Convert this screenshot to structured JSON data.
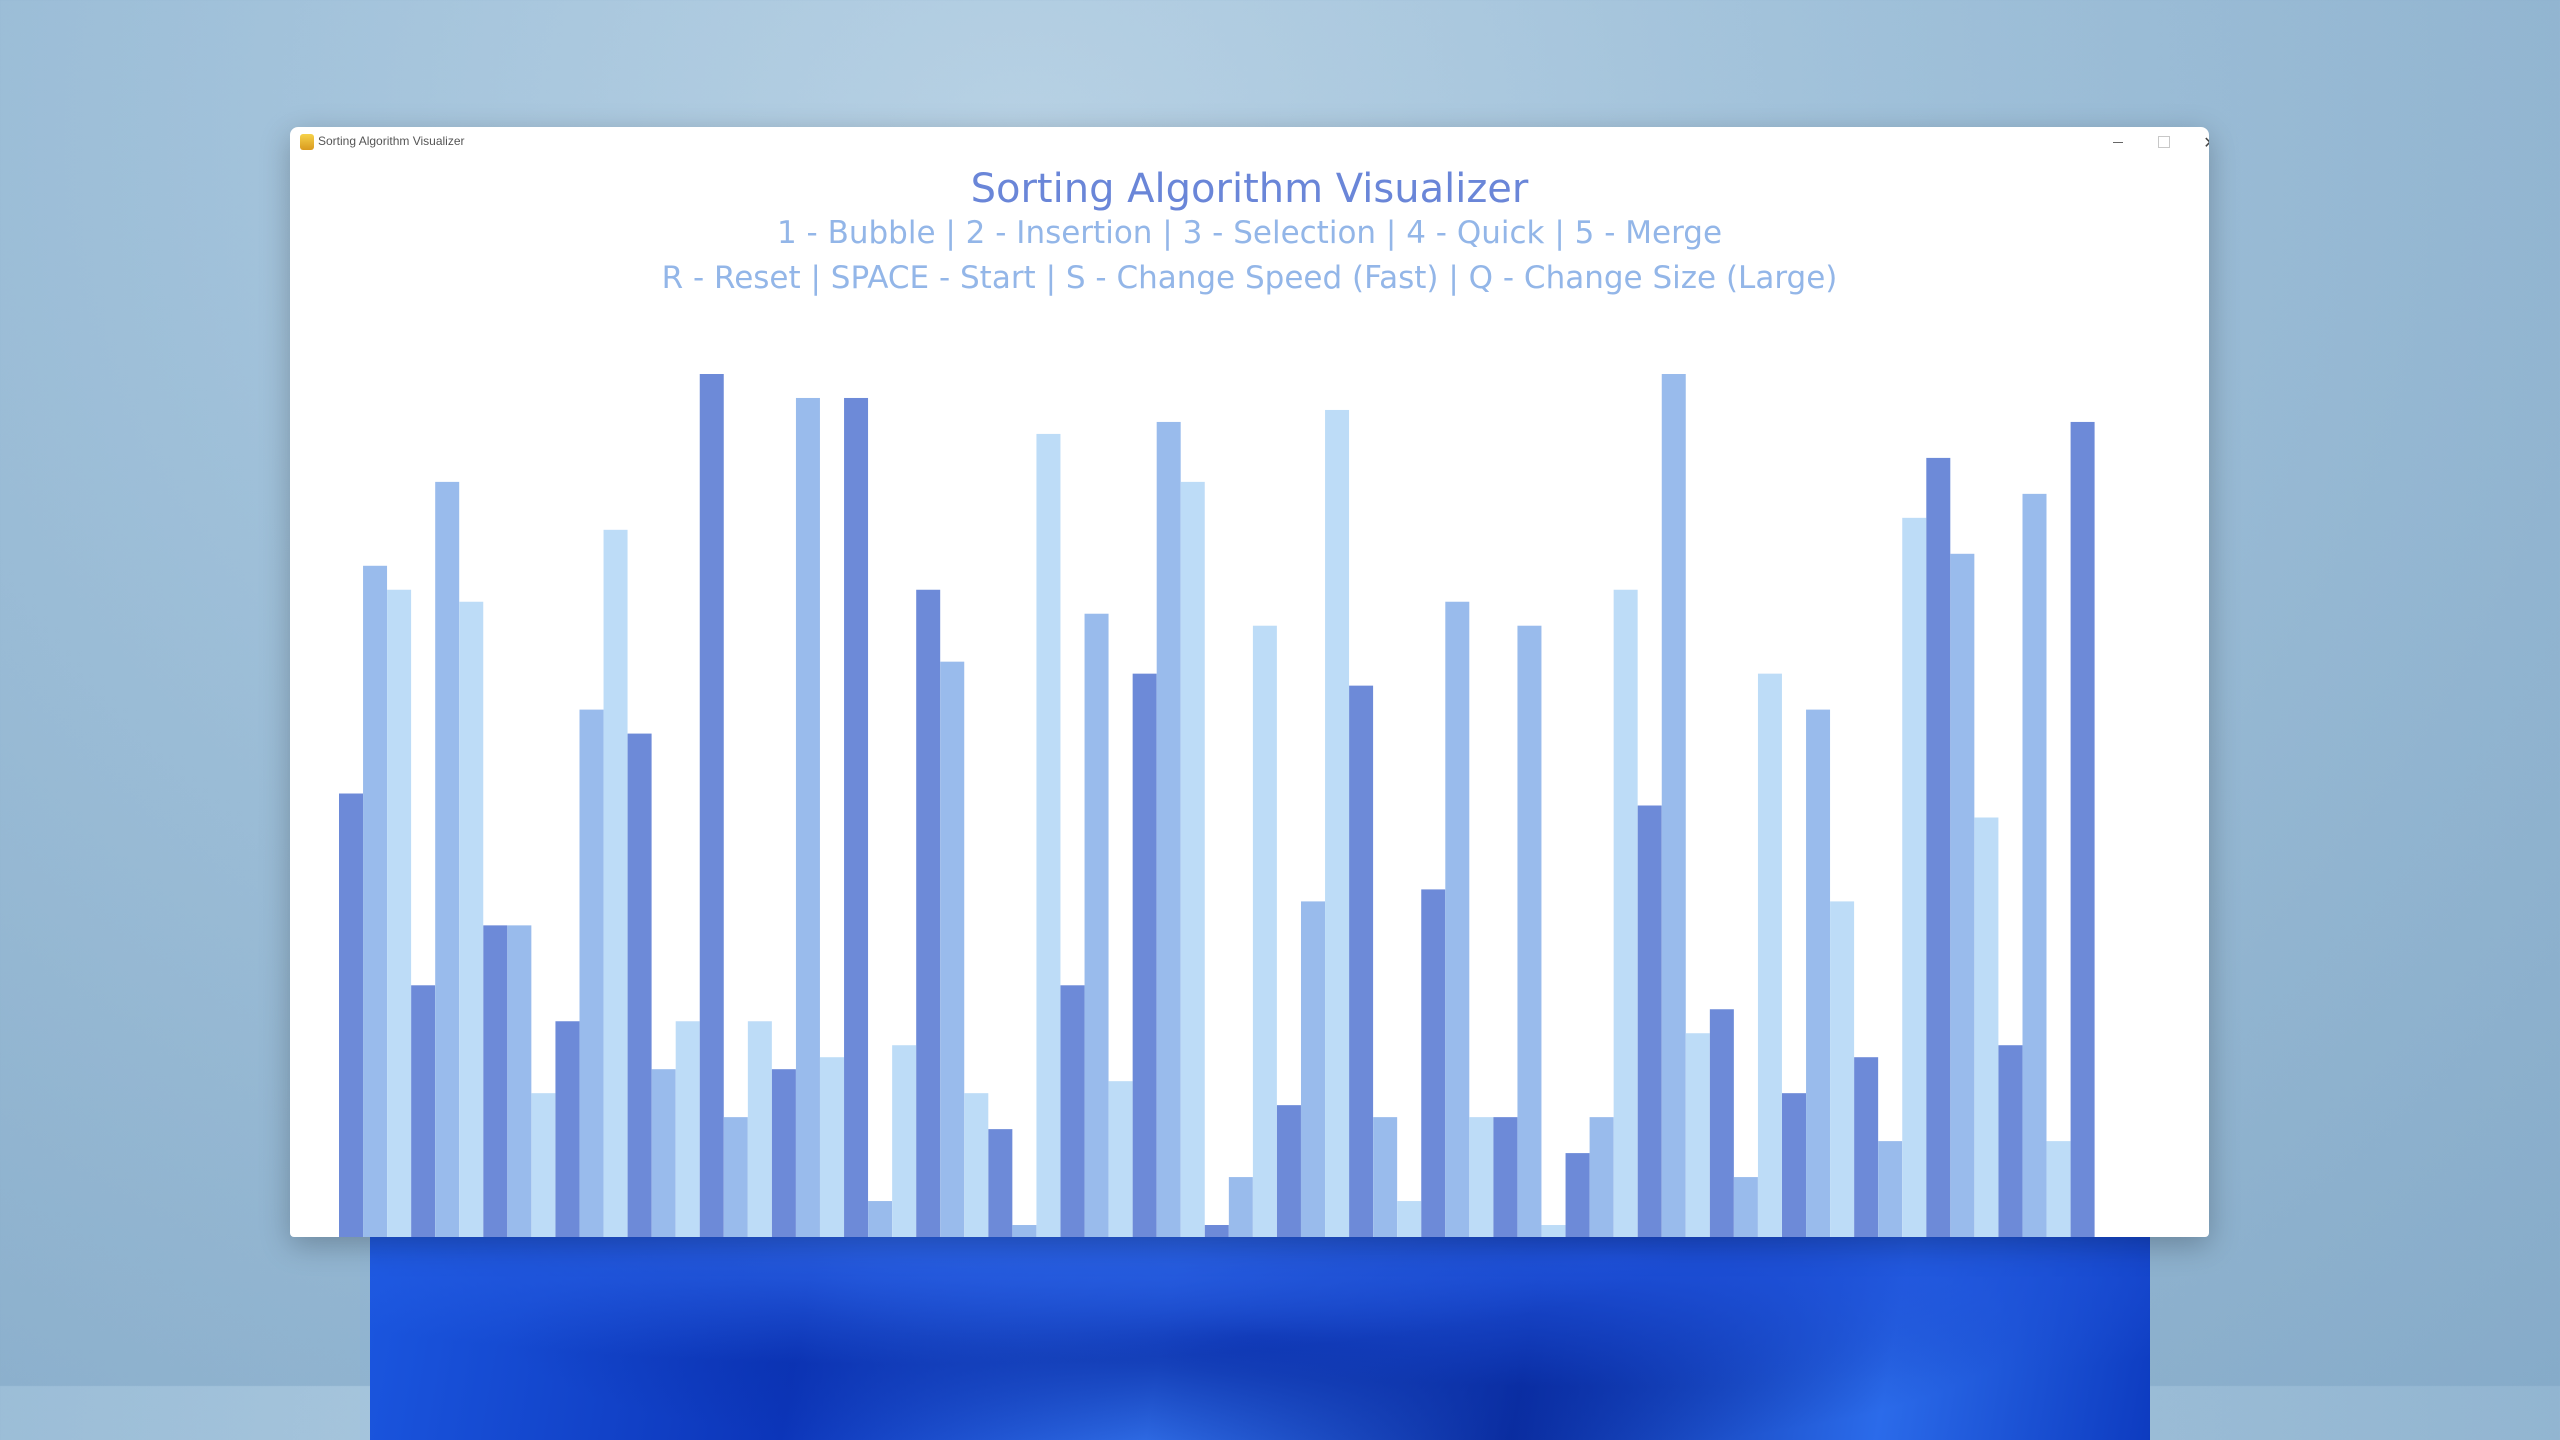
{
  "window": {
    "title": "Sorting Algorithm Visualizer",
    "controls": {
      "minimize": "—",
      "maximize": "",
      "close": "✕"
    }
  },
  "app": {
    "title": "Sorting Algorithm Visualizer",
    "algorithms_line": "1 - Bubble | 2 - Insertion | 3 - Selection | 4 - Quick | 5 - Merge",
    "controls_line": "R - Reset | SPACE - Start | S - Change Speed (Fast) | Q - Change Size (Large)"
  },
  "colors": {
    "bar_dark": "#6d8ad8",
    "bar_mid": "#99bbec",
    "bar_light": "#bddcf7"
  },
  "chart_data": {
    "type": "bar",
    "values": [
      37,
      56,
      54,
      21,
      63,
      53,
      26,
      26,
      12,
      18,
      44,
      59,
      42,
      14,
      18,
      72,
      10,
      18,
      14,
      70,
      15,
      70,
      3,
      16,
      54,
      48,
      12,
      9,
      1,
      67,
      21,
      52,
      13,
      47,
      68,
      63,
      1,
      5,
      51,
      11,
      28,
      69,
      46,
      10,
      3,
      29,
      53,
      10,
      10,
      51,
      1,
      7,
      10,
      54,
      36,
      72,
      17,
      19,
      5,
      47,
      12,
      44,
      28,
      15,
      8,
      60,
      65,
      57,
      35,
      16,
      62,
      8,
      68
    ],
    "ylim": [
      0,
      72
    ]
  }
}
